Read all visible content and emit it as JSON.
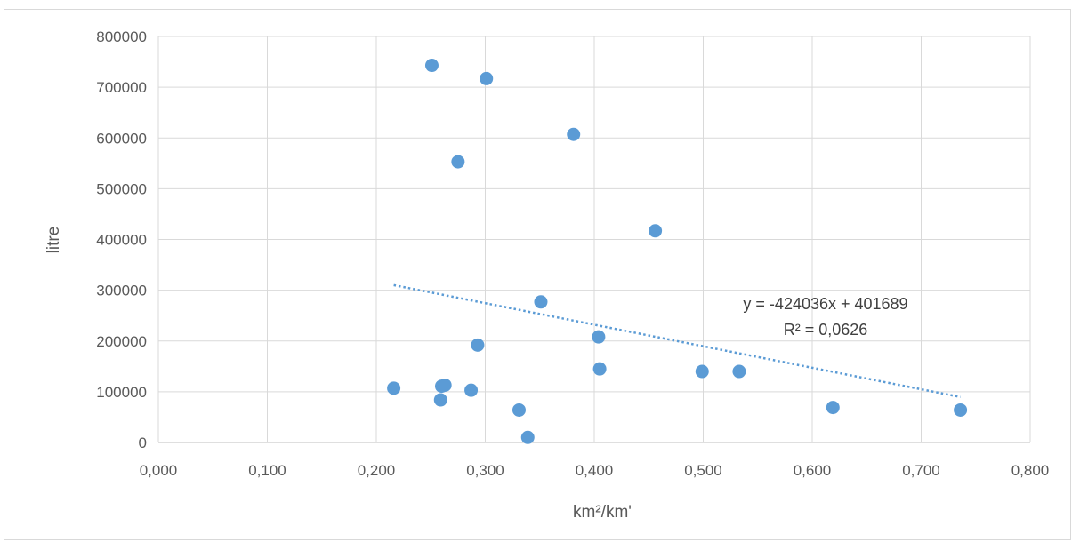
{
  "chart_data": {
    "type": "scatter",
    "title": "",
    "xlabel": "km²/km'",
    "ylabel": "litre",
    "xlim": [
      0,
      0.8
    ],
    "ylim": [
      0,
      800000
    ],
    "x_ticks": [
      0,
      0.1,
      0.2,
      0.3,
      0.4,
      0.5,
      0.6,
      0.7,
      0.8
    ],
    "x_tick_labels": [
      "0,000",
      "0,100",
      "0,200",
      "0,300",
      "0,400",
      "0,500",
      "0,600",
      "0,700",
      "0,800"
    ],
    "y_ticks": [
      0,
      100000,
      200000,
      300000,
      400000,
      500000,
      600000,
      700000,
      800000
    ],
    "y_tick_labels": [
      "0",
      "100000",
      "200000",
      "300000",
      "400000",
      "500000",
      "600000",
      "700000",
      "800000"
    ],
    "grid": true,
    "marker_color": "#5b9bd5",
    "trendline_color": "#5b9bd5",
    "points": [
      {
        "x": 0.216,
        "y": 107000
      },
      {
        "x": 0.251,
        "y": 743000
      },
      {
        "x": 0.259,
        "y": 84000
      },
      {
        "x": 0.26,
        "y": 111000
      },
      {
        "x": 0.263,
        "y": 113000
      },
      {
        "x": 0.275,
        "y": 553000
      },
      {
        "x": 0.287,
        "y": 103000
      },
      {
        "x": 0.293,
        "y": 192000
      },
      {
        "x": 0.301,
        "y": 717000
      },
      {
        "x": 0.331,
        "y": 64000
      },
      {
        "x": 0.339,
        "y": 10000
      },
      {
        "x": 0.351,
        "y": 277000
      },
      {
        "x": 0.381,
        "y": 607000
      },
      {
        "x": 0.404,
        "y": 208000
      },
      {
        "x": 0.405,
        "y": 145000
      },
      {
        "x": 0.456,
        "y": 417000
      },
      {
        "x": 0.499,
        "y": 140000
      },
      {
        "x": 0.533,
        "y": 140000
      },
      {
        "x": 0.619,
        "y": 69000
      },
      {
        "x": 0.736,
        "y": 64000
      }
    ],
    "trendline": {
      "type": "linear",
      "slope": -424036,
      "intercept": 401689,
      "x_range": [
        0.216,
        0.736
      ],
      "equation": "y = -424036x + 401689",
      "r_squared": "R² = 0,0626"
    }
  }
}
